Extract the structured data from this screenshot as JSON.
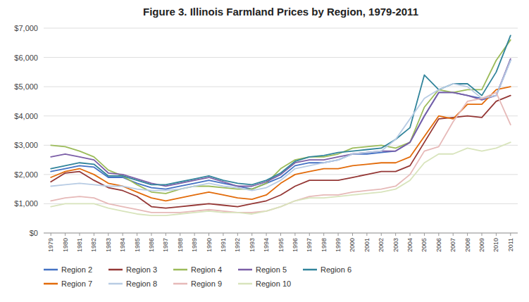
{
  "chart_data": {
    "type": "line",
    "title": "Figure 3. Illinois Farmland Prices by Region, 1979-2011",
    "x": [
      1979,
      1980,
      1981,
      1982,
      1983,
      1984,
      1985,
      1986,
      1987,
      1988,
      1989,
      1990,
      1991,
      1992,
      1993,
      1994,
      1995,
      1996,
      1997,
      1998,
      1999,
      2000,
      2001,
      2002,
      2003,
      2004,
      2005,
      2006,
      2007,
      2008,
      2009,
      2010,
      2011
    ],
    "series": [
      {
        "name": "Region 2",
        "color": "#4472C4",
        "values": [
          2100,
          2200,
          2300,
          2250,
          1900,
          1900,
          1700,
          1550,
          1500,
          1600,
          1700,
          1800,
          1700,
          1600,
          1500,
          1700,
          1900,
          2300,
          2400,
          2400,
          2500,
          2700,
          2700,
          2750,
          2800,
          3100,
          4000,
          4800,
          4800,
          4700,
          4600,
          4700,
          5900
        ]
      },
      {
        "name": "Region 3",
        "color": "#943735",
        "values": [
          1750,
          2050,
          2100,
          1800,
          1550,
          1450,
          1250,
          900,
          850,
          900,
          950,
          1000,
          950,
          900,
          1000,
          1100,
          1300,
          1600,
          1800,
          1800,
          1800,
          1900,
          2000,
          2100,
          2100,
          2300,
          3100,
          3900,
          3950,
          4000,
          3950,
          4500,
          4700
        ]
      },
      {
        "name": "Region 4",
        "color": "#9BBB59",
        "values": [
          3000,
          2950,
          2800,
          2600,
          2150,
          1950,
          1650,
          1400,
          1350,
          1500,
          1600,
          1600,
          1550,
          1500,
          1500,
          1700,
          2200,
          2500,
          2600,
          2600,
          2700,
          2900,
          2950,
          3000,
          2900,
          3100,
          4300,
          4900,
          4800,
          4900,
          4900,
          5900,
          6600
        ]
      },
      {
        "name": "Region 5",
        "color": "#7B5EA7",
        "values": [
          2600,
          2700,
          2600,
          2500,
          2050,
          2000,
          1850,
          1700,
          1600,
          1700,
          1800,
          1900,
          1750,
          1600,
          1600,
          1750,
          2000,
          2400,
          2500,
          2500,
          2600,
          2700,
          2750,
          2800,
          2800,
          3100,
          4000,
          4800,
          4800,
          4700,
          4550,
          4700,
          5950
        ]
      },
      {
        "name": "Region 6",
        "color": "#31849B",
        "values": [
          2200,
          2300,
          2400,
          2350,
          1950,
          1950,
          1800,
          1650,
          1650,
          1750,
          1850,
          1950,
          1800,
          1700,
          1650,
          1800,
          2050,
          2450,
          2600,
          2650,
          2750,
          2800,
          2850,
          2900,
          3200,
          3600,
          5400,
          4900,
          5100,
          5100,
          4700,
          5500,
          6750
        ]
      },
      {
        "name": "Region 7",
        "color": "#E26B0A",
        "values": [
          1900,
          2100,
          2200,
          2000,
          1700,
          1600,
          1400,
          1200,
          1100,
          1200,
          1300,
          1400,
          1300,
          1200,
          1150,
          1300,
          1700,
          2000,
          2100,
          2200,
          2200,
          2300,
          2350,
          2400,
          2400,
          2600,
          3300,
          4000,
          3900,
          4400,
          4400,
          4900,
          5000
        ]
      },
      {
        "name": "Region 8",
        "color": "#B8CCE4",
        "values": [
          1600,
          1650,
          1700,
          1650,
          1600,
          1600,
          1500,
          1450,
          1450,
          1500,
          1600,
          1700,
          1600,
          1550,
          1450,
          1550,
          1800,
          2200,
          2300,
          2400,
          2500,
          2700,
          2750,
          2800,
          3200,
          3900,
          4600,
          4900,
          5100,
          5000,
          4600,
          4700,
          5900
        ]
      },
      {
        "name": "Region 9",
        "color": "#E6B9B8",
        "values": [
          1100,
          1200,
          1250,
          1200,
          1000,
          900,
          800,
          700,
          700,
          700,
          750,
          800,
          750,
          700,
          700,
          750,
          900,
          1100,
          1250,
          1300,
          1300,
          1400,
          1450,
          1500,
          1600,
          2000,
          2800,
          2950,
          3800,
          4500,
          4600,
          4800,
          3700
        ]
      },
      {
        "name": "Region 10",
        "color": "#D8E4BC",
        "values": [
          900,
          1000,
          1000,
          1000,
          850,
          750,
          650,
          600,
          600,
          650,
          700,
          750,
          700,
          700,
          650,
          750,
          900,
          1100,
          1200,
          1200,
          1250,
          1300,
          1350,
          1400,
          1500,
          1800,
          2400,
          2700,
          2700,
          2900,
          2800,
          2900,
          3100
        ]
      }
    ],
    "xlim": [
      1978.5,
      2011.5
    ],
    "xticks": [
      1979,
      1980,
      1981,
      1982,
      1983,
      1984,
      1985,
      1986,
      1987,
      1988,
      1989,
      1990,
      1991,
      1992,
      1993,
      1994,
      1995,
      1996,
      1997,
      1998,
      1999,
      2000,
      2001,
      2002,
      2003,
      2004,
      2005,
      2006,
      2007,
      2008,
      2009,
      2010,
      2011
    ],
    "ylim": [
      0,
      7000
    ],
    "yticks": [
      {
        "value": 0,
        "label": "$0"
      },
      {
        "value": 1000,
        "label": "$1,000"
      },
      {
        "value": 2000,
        "label": "$2,000"
      },
      {
        "value": 3000,
        "label": "$3,000"
      },
      {
        "value": 4000,
        "label": "$4,000"
      },
      {
        "value": 5000,
        "label": "$5,000"
      },
      {
        "value": 6000,
        "label": "$6,000"
      },
      {
        "value": 7000,
        "label": "$7,000"
      }
    ],
    "grid": true,
    "legend": "bottom"
  }
}
